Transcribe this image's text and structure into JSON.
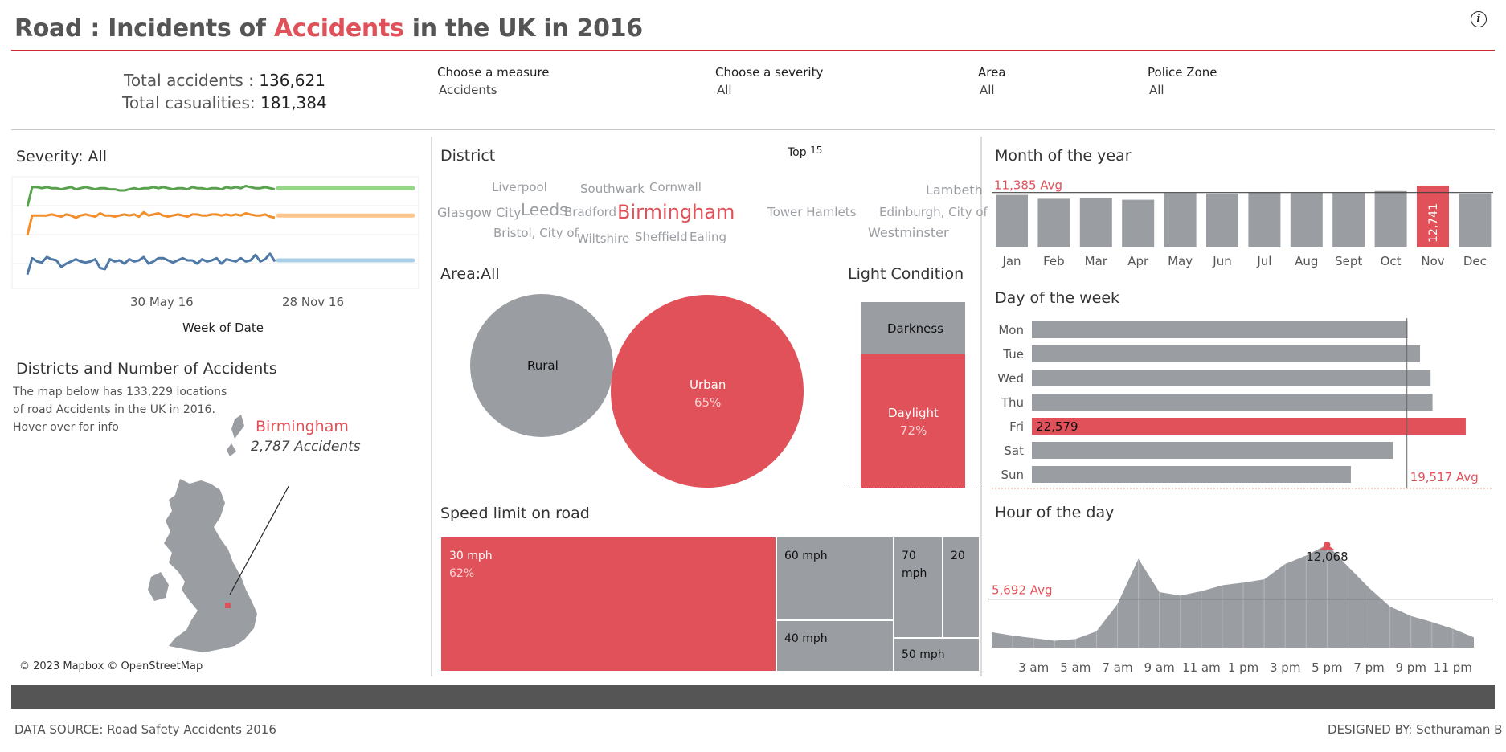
{
  "header": {
    "title_part1": "Road : Incidents of ",
    "title_accent": "Accidents",
    "title_part2": "  in the UK in 2016",
    "info_icon": "i"
  },
  "totals": {
    "accidents_label": "Total accidents  :",
    "accidents_value": "136,621",
    "casualties_label": "Total casualities:",
    "casualties_value": "181,384"
  },
  "filters": [
    {
      "label": "Choose a measure",
      "value": "Accidents"
    },
    {
      "label": "Choose a severity",
      "value": "All"
    },
    {
      "label": "Area",
      "value": "All"
    },
    {
      "label": "Police Zone",
      "value": "All"
    }
  ],
  "colors": {
    "accent": "#e15159",
    "gray": "#9a9da2",
    "green": "#59a14f",
    "orange": "#f28e2b",
    "blue": "#4e79a7"
  },
  "severity": {
    "title": "Severity: All",
    "x_ticks": [
      "30 May 16",
      "28 Nov 16"
    ],
    "xlabel": "Week of Date"
  },
  "map_section": {
    "title": "Districts and Number of Accidents",
    "description": "The map below has 133,229 locations of road Accidents in the UK in 2016. Hover over for info",
    "highlight_name": "Birmingham",
    "highlight_value": "2,787 Accidents",
    "copyright": "© 2023 Mapbox © OpenStreetMap"
  },
  "district": {
    "title": "District",
    "top_label": "Top",
    "top_value": "15",
    "words": [
      "Liverpool",
      "Southwark",
      "Cornwall",
      "Lambeth",
      "Glasgow City",
      "Leeds",
      "Bradford",
      "Birmingham",
      "Tower Hamlets",
      "Edinburgh, City of",
      "Bristol, City of",
      "Wiltshire",
      "Sheffield",
      "Ealing",
      "Westminster"
    ]
  },
  "area": {
    "title": "Area:All",
    "rural_label": "Rural",
    "urban_label": "Urban",
    "urban_pct": "65%"
  },
  "light": {
    "title": "Light Condition",
    "darkness_label": "Darkness",
    "daylight_label": "Daylight",
    "daylight_pct": "72%"
  },
  "speed": {
    "title": "Speed limit on road",
    "mph30": "30 mph",
    "mph30_pct": "62%",
    "mph60": "60 mph",
    "mph70_a": "70",
    "mph70_b": "mph",
    "mph20": "20",
    "mph40": "40 mph",
    "mph50": "50 mph"
  },
  "month": {
    "title": "Month of the year",
    "avg_label": "11,385 Avg",
    "highlight_value": "12,741"
  },
  "week": {
    "title": "Day of the week",
    "highlight_value": "22,579",
    "avg_label": "19,517 Avg"
  },
  "hour": {
    "title": "Hour of the day",
    "avg_label": "5,692 Avg",
    "peak_value": "12,068"
  },
  "footer": {
    "source": "DATA SOURCE: Road Safety Accidents 2016",
    "designer": "DESIGNED BY: Sethuraman B"
  },
  "chart_data": [
    {
      "type": "line",
      "title": "Severity: All",
      "xlabel": "Week of Date",
      "x_ticks": [
        "30 May 16",
        "28 Nov 16"
      ],
      "series": [
        {
          "color": "#59a14f",
          "values": [
            74,
            92,
            92,
            91,
            92,
            91,
            91,
            90,
            91,
            92,
            90,
            91,
            92,
            91,
            90,
            91,
            91,
            90,
            90,
            89,
            89,
            90,
            91,
            90,
            91,
            91,
            92,
            91,
            92,
            91,
            90,
            91,
            91,
            90,
            92,
            91,
            91,
            90,
            91,
            91,
            90,
            92,
            91,
            92,
            91,
            93,
            92,
            91,
            91,
            92,
            91,
            90
          ]
        },
        {
          "color": "#f28e2b",
          "values": [
            48,
            66,
            66,
            66,
            66,
            67,
            66,
            65,
            67,
            66,
            64,
            66,
            67,
            66,
            65,
            68,
            66,
            66,
            65,
            66,
            67,
            66,
            67,
            65,
            69,
            66,
            67,
            68,
            66,
            65,
            66,
            67,
            66,
            65,
            67,
            67,
            66,
            66,
            67,
            67,
            66,
            67,
            66,
            67,
            66,
            68,
            67,
            66,
            66,
            67,
            65,
            64
          ]
        },
        {
          "color": "#4e79a7",
          "values": [
            12,
            27,
            24,
            23,
            28,
            26,
            25,
            19,
            22,
            24,
            26,
            24,
            23,
            24,
            26,
            18,
            17,
            26,
            24,
            25,
            22,
            26,
            24,
            25,
            28,
            22,
            24,
            27,
            27,
            25,
            23,
            25,
            27,
            25,
            25,
            22,
            26,
            24,
            25,
            27,
            22,
            26,
            25,
            24,
            27,
            24,
            25,
            30,
            24,
            26,
            31,
            24
          ]
        }
      ],
      "forecast": [
        {
          "color": "#8cd17d",
          "value": 91
        },
        {
          "color": "#ffbe7d",
          "value": 66
        },
        {
          "color": "#a0cbe8",
          "value": 25
        }
      ]
    },
    {
      "type": "bar",
      "title": "Month of the year",
      "categories": [
        "Jan",
        "Feb",
        "Mar",
        "Apr",
        "May",
        "Jun",
        "Jul",
        "Aug",
        "Sept",
        "Oct",
        "Nov",
        "Dec"
      ],
      "values": [
        10900,
        10100,
        10300,
        9900,
        11300,
        11200,
        11450,
        11300,
        11300,
        11700,
        12741,
        11200
      ],
      "highlight": "Nov",
      "average": 11385,
      "ylim": [
        0,
        13000
      ]
    },
    {
      "type": "bar",
      "orientation": "horizontal",
      "title": "Day of the week",
      "categories": [
        "Mon",
        "Tue",
        "Wed",
        "Thu",
        "Fri",
        "Sat",
        "Sun"
      ],
      "values": [
        19550,
        20200,
        20750,
        20850,
        22579,
        18800,
        16600
      ],
      "highlight": "Fri",
      "average": 19517,
      "xlim": [
        0,
        23000
      ]
    },
    {
      "type": "area",
      "title": "Hour of the day",
      "x": [
        0,
        1,
        2,
        3,
        4,
        5,
        6,
        7,
        8,
        9,
        10,
        11,
        12,
        13,
        14,
        15,
        16,
        17,
        18,
        19,
        20,
        21,
        22,
        23
      ],
      "x_ticks": [
        "3 am",
        "5 am",
        "7 am",
        "9 am",
        "11 am",
        "1 pm",
        "3 pm",
        "5 pm",
        "7 pm",
        "9 pm",
        "11 pm"
      ],
      "values": [
        1800,
        1400,
        1100,
        800,
        1000,
        1900,
        5100,
        10400,
        6500,
        6100,
        6600,
        7300,
        7600,
        8000,
        9800,
        10800,
        12068,
        9500,
        7000,
        4800,
        3700,
        3000,
        2200,
        1200
      ],
      "average": 5692,
      "highlight_x": 16,
      "ylim": [
        0,
        13000
      ]
    },
    {
      "type": "bubble",
      "title": "Area:All",
      "categories": [
        "Rural",
        "Urban"
      ],
      "values": [
        35,
        65
      ]
    },
    {
      "type": "bar",
      "stacked": true,
      "title": "Light Condition",
      "categories": [
        "Darkness",
        "Daylight"
      ],
      "values": [
        28,
        72
      ]
    },
    {
      "type": "treemap",
      "title": "Speed limit on road",
      "categories": [
        "30 mph",
        "60 mph",
        "40 mph",
        "70 mph",
        "20 mph",
        "50 mph"
      ],
      "values": [
        62,
        12,
        10,
        7,
        5,
        4
      ]
    }
  ]
}
